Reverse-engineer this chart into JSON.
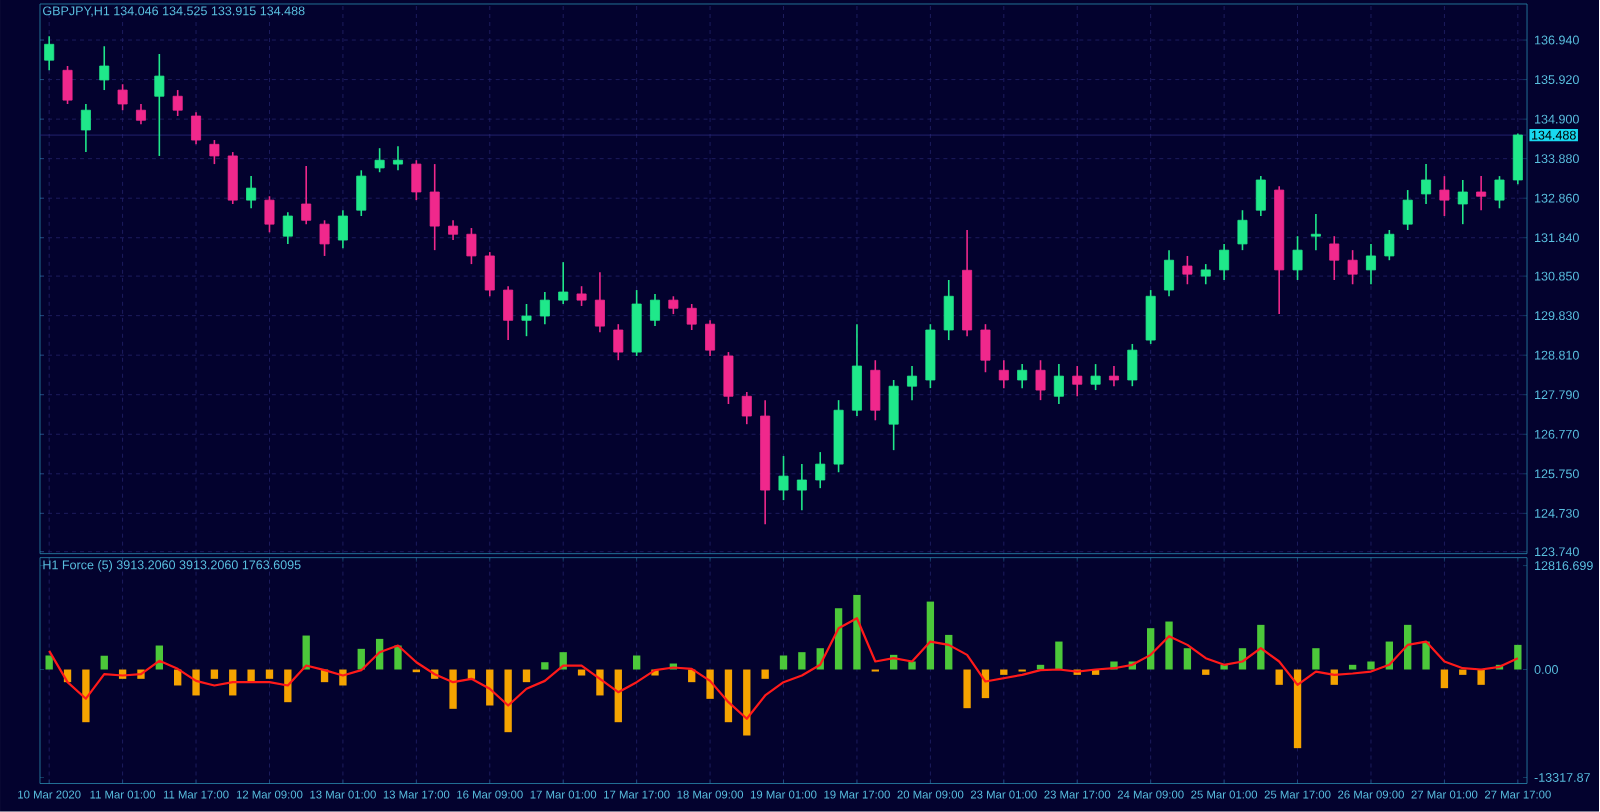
{
  "chart_data": [
    {
      "type": "candlestick",
      "title": "GBPJPY,H1  134.046 134.525 133.915 134.488",
      "categories": [
        null,
        null,
        null,
        null,
        null,
        null,
        null,
        null,
        null,
        null,
        null,
        null,
        null,
        null,
        null,
        null,
        null,
        null,
        null,
        null,
        null,
        null,
        null,
        null,
        null,
        null,
        null,
        null,
        null,
        null,
        null,
        null,
        null,
        null,
        null,
        null,
        null,
        null,
        null,
        null,
        null,
        null,
        null,
        null,
        null,
        null,
        null,
        null,
        null,
        null,
        null,
        null,
        null,
        null,
        null,
        null,
        null,
        null,
        null,
        null,
        null,
        null,
        null,
        null,
        null,
        null,
        null,
        null,
        null,
        null,
        null,
        null,
        null,
        null,
        null,
        null,
        null,
        null,
        null,
        null,
        null
      ],
      "ohlc": [
        [
          136.42,
          137.04,
          136.16,
          136.83
        ],
        [
          136.16,
          136.27,
          135.29,
          135.39
        ],
        [
          134.62,
          135.29,
          134.05,
          135.13
        ],
        [
          135.91,
          136.78,
          135.65,
          136.27
        ],
        [
          135.65,
          135.8,
          135.13,
          135.29
        ],
        [
          135.13,
          135.29,
          134.77,
          134.87
        ],
        [
          135.49,
          136.58,
          133.95,
          136.01
        ],
        [
          135.49,
          135.65,
          134.98,
          135.13
        ],
        [
          134.98,
          135.08,
          134.25,
          134.36
        ],
        [
          134.25,
          134.36,
          133.74,
          133.95
        ],
        [
          133.95,
          134.05,
          132.71,
          132.81
        ],
        [
          132.81,
          133.43,
          132.6,
          133.12
        ],
        [
          132.81,
          132.91,
          131.98,
          132.19
        ],
        [
          131.88,
          132.5,
          131.68,
          132.4
        ],
        [
          132.71,
          133.69,
          132.19,
          132.29
        ],
        [
          132.19,
          132.29,
          131.37,
          131.68
        ],
        [
          131.78,
          132.55,
          131.57,
          132.4
        ],
        [
          132.55,
          133.58,
          132.4,
          133.43
        ],
        [
          133.64,
          134.15,
          133.53,
          133.84
        ],
        [
          133.74,
          134.2,
          133.58,
          133.84
        ],
        [
          133.74,
          133.84,
          132.81,
          133.02
        ],
        [
          133.02,
          133.74,
          131.52,
          132.14
        ],
        [
          132.14,
          132.29,
          131.78,
          131.93
        ],
        [
          131.93,
          132.09,
          131.16,
          131.37
        ],
        [
          131.37,
          131.47,
          130.33,
          130.49
        ],
        [
          130.49,
          130.59,
          129.2,
          129.71
        ],
        [
          129.71,
          130.13,
          129.3,
          129.82
        ],
        [
          129.82,
          130.44,
          129.61,
          130.23
        ],
        [
          130.23,
          131.21,
          130.13,
          130.44
        ],
        [
          130.39,
          130.59,
          130.08,
          130.23
        ],
        [
          130.23,
          130.95,
          129.4,
          129.56
        ],
        [
          129.46,
          129.61,
          128.68,
          128.89
        ],
        [
          128.89,
          130.49,
          128.79,
          130.13
        ],
        [
          129.71,
          130.39,
          129.56,
          130.23
        ],
        [
          130.23,
          130.33,
          129.87,
          130.02
        ],
        [
          130.02,
          130.13,
          129.46,
          129.61
        ],
        [
          129.61,
          129.71,
          128.79,
          128.94
        ],
        [
          128.79,
          128.89,
          127.55,
          127.75
        ],
        [
          127.75,
          127.86,
          127.03,
          127.24
        ],
        [
          127.24,
          127.65,
          124.45,
          125.33
        ],
        [
          125.33,
          126.21,
          125.07,
          125.69
        ],
        [
          125.33,
          126.0,
          124.81,
          125.59
        ],
        [
          125.59,
          126.31,
          125.38,
          126.0
        ],
        [
          126.0,
          127.65,
          125.79,
          127.39
        ],
        [
          127.39,
          129.61,
          127.24,
          128.53
        ],
        [
          128.42,
          128.68,
          127.13,
          127.39
        ],
        [
          127.03,
          128.17,
          126.36,
          128.01
        ],
        [
          128.01,
          128.53,
          127.65,
          128.27
        ],
        [
          128.17,
          129.61,
          127.96,
          129.46
        ],
        [
          129.46,
          130.75,
          129.2,
          130.33
        ],
        [
          131.0,
          132.04,
          129.3,
          129.46
        ],
        [
          129.46,
          129.61,
          128.37,
          128.68
        ],
        [
          128.42,
          128.68,
          127.96,
          128.17
        ],
        [
          128.17,
          128.58,
          127.96,
          128.42
        ],
        [
          128.42,
          128.68,
          127.65,
          127.91
        ],
        [
          127.75,
          128.58,
          127.55,
          128.27
        ],
        [
          128.27,
          128.53,
          127.75,
          128.06
        ],
        [
          128.06,
          128.58,
          127.91,
          128.27
        ],
        [
          128.27,
          128.53,
          128.01,
          128.17
        ],
        [
          128.17,
          129.1,
          128.01,
          128.94
        ],
        [
          129.2,
          130.49,
          129.1,
          130.33
        ],
        [
          130.49,
          131.52,
          130.33,
          131.26
        ],
        [
          131.11,
          131.37,
          130.64,
          130.9
        ],
        [
          130.85,
          131.16,
          130.64,
          131.01
        ],
        [
          131.01,
          131.68,
          130.75,
          131.52
        ],
        [
          131.68,
          132.55,
          131.52,
          132.29
        ],
        [
          132.55,
          133.43,
          132.4,
          133.33
        ],
        [
          133.07,
          133.17,
          129.87,
          131.01
        ],
        [
          131.01,
          131.88,
          130.75,
          131.52
        ],
        [
          131.88,
          132.45,
          131.52,
          131.93
        ],
        [
          131.68,
          131.88,
          130.75,
          131.26
        ],
        [
          131.26,
          131.52,
          130.64,
          130.9
        ],
        [
          131.01,
          131.68,
          130.64,
          131.37
        ],
        [
          131.37,
          132.04,
          131.26,
          131.93
        ],
        [
          132.19,
          133.07,
          132.04,
          132.81
        ],
        [
          132.97,
          133.74,
          132.71,
          133.33
        ],
        [
          133.07,
          133.43,
          132.4,
          132.81
        ],
        [
          132.71,
          133.33,
          132.19,
          133.02
        ],
        [
          133.02,
          133.43,
          132.55,
          132.91
        ],
        [
          132.81,
          133.43,
          132.6,
          133.33
        ],
        [
          133.33,
          134.53,
          133.22,
          134.49
        ]
      ],
      "colors": [
        "#1fe88a",
        "#f0288c",
        "#1fe88a",
        "#1fe88a",
        "#f0288c",
        "#f0288c",
        "#1fe88a",
        "#f0288c",
        "#f0288c",
        "#f0288c",
        "#f0288c",
        "#1fe88a",
        "#f0288c",
        "#1fe88a",
        "#f0288c",
        "#f0288c",
        "#1fe88a",
        "#1fe88a",
        "#1fe88a",
        "#1fe88a",
        "#f0288c",
        "#f0288c",
        "#f0288c",
        "#f0288c",
        "#f0288c",
        "#f0288c",
        "#1fe88a",
        "#1fe88a",
        "#1fe88a",
        "#f0288c",
        "#f0288c",
        "#f0288c",
        "#1fe88a",
        "#1fe88a",
        "#f0288c",
        "#f0288c",
        "#f0288c",
        "#f0288c",
        "#f0288c",
        "#f0288c",
        "#1fe88a",
        "#1fe88a",
        "#1fe88a",
        "#1fe88a",
        "#1fe88a",
        "#f0288c",
        "#1fe88a",
        "#1fe88a",
        "#1fe88a",
        "#1fe88a",
        "#f0288c",
        "#f0288c",
        "#f0288c",
        "#1fe88a",
        "#f0288c",
        "#1fe88a",
        "#f0288c",
        "#1fe88a",
        "#f0288c",
        "#1fe88a",
        "#1fe88a",
        "#1fe88a",
        "#f0288c",
        "#1fe88a",
        "#1fe88a",
        "#1fe88a",
        "#1fe88a",
        "#f0288c",
        "#1fe88a",
        "#1fe88a",
        "#f0288c",
        "#f0288c",
        "#1fe88a",
        "#1fe88a",
        "#1fe88a",
        "#1fe88a",
        "#f0288c",
        "#1fe88a",
        "#f0288c",
        "#1fe88a",
        "#1fe88a"
      ],
      "ylim": [
        123.69,
        137.87
      ],
      "yticks": [
        {
          "value": 136.94,
          "label": "136.940"
        },
        {
          "value": 135.92,
          "label": "135.920"
        },
        {
          "value": 134.9,
          "label": "134.900"
        },
        {
          "value": 133.88,
          "label": "133.880"
        },
        {
          "value": 132.86,
          "label": "132.860"
        },
        {
          "value": 131.84,
          "label": "131.840"
        },
        {
          "value": 130.85,
          "label": "130.850"
        },
        {
          "value": 129.83,
          "label": "129.830"
        },
        {
          "value": 128.81,
          "label": "128.810"
        },
        {
          "value": 127.79,
          "label": "127.790"
        },
        {
          "value": 126.77,
          "label": "126.770"
        },
        {
          "value": 125.75,
          "label": "125.750"
        },
        {
          "value": 124.73,
          "label": "124.730"
        },
        {
          "value": 123.74,
          "label": "123.740"
        }
      ],
      "grid": true,
      "tick_labels": "y",
      "ref_lines": [
        {
          "axis": "y",
          "value": 134.488,
          "label": "134.488",
          "color": "#2a2a80"
        }
      ]
    },
    {
      "type": "bar",
      "title": "H1 Force (5) 3913.2060 3913.2060 1763.6095",
      "categories": [
        "10 Mar 2020",
        null,
        null,
        null,
        "11 Mar 01:00",
        null,
        null,
        null,
        "11 Mar 17:00",
        null,
        null,
        null,
        "12 Mar 09:00",
        null,
        null,
        null,
        "13 Mar 01:00",
        null,
        null,
        null,
        "13 Mar 17:00",
        null,
        null,
        null,
        "16 Mar 09:00",
        null,
        null,
        null,
        "17 Mar 01:00",
        null,
        null,
        null,
        "17 Mar 17:00",
        null,
        null,
        null,
        "18 Mar 09:00",
        null,
        null,
        null,
        "19 Mar 01:00",
        null,
        null,
        null,
        "19 Mar 17:00",
        null,
        null,
        null,
        "20 Mar 09:00",
        null,
        null,
        null,
        "23 Mar 01:00",
        null,
        null,
        null,
        "23 Mar 17:00",
        null,
        null,
        null,
        "24 Mar 09:00",
        null,
        null,
        null,
        "25 Mar 01:00",
        null,
        null,
        null,
        "25 Mar 17:00",
        null,
        null,
        null,
        "26 Mar 09:00",
        null,
        null,
        null,
        "27 Mar 01:00",
        null,
        null,
        null,
        "27 Mar 17:00"
      ],
      "series": [
        {
          "type": "bar",
          "values": [
            1730,
            -1560,
            -6500,
            1700,
            -1150,
            -1150,
            2960,
            -1970,
            -3200,
            -1150,
            -3200,
            -1560,
            -1150,
            -4030,
            4190,
            -1560,
            -1970,
            2550,
            3780,
            2960,
            -330,
            -1150,
            -4850,
            -1150,
            -4440,
            -7730,
            -1560,
            900,
            2140,
            -740,
            -3200,
            -6500,
            1730,
            -740,
            740,
            -1560,
            -3620,
            -6500,
            -8140,
            -1150,
            1730,
            2140,
            2630,
            7560,
            9200,
            -250,
            1810,
            990,
            8380,
            4270,
            -4770,
            -3530,
            -660,
            -250,
            580,
            3450,
            -660,
            -660,
            990,
            990,
            5100,
            5920,
            2630,
            -660,
            580,
            2630,
            5510,
            -1890,
            -9700,
            2630,
            -1890,
            580,
            990,
            3450,
            5510,
            3450,
            -2300,
            -660,
            -1890,
            580,
            3040
          ],
          "colors": [
            "#4cc83a",
            "#f5a300",
            "#f5a300",
            "#4cc83a",
            "#f5a300",
            "#f5a300",
            "#4cc83a",
            "#f5a300",
            "#f5a300",
            "#f5a300",
            "#f5a300",
            "#f5a300",
            "#f5a300",
            "#f5a300",
            "#4cc83a",
            "#f5a300",
            "#f5a300",
            "#4cc83a",
            "#4cc83a",
            "#4cc83a",
            "#f5a300",
            "#f5a300",
            "#f5a300",
            "#f5a300",
            "#f5a300",
            "#f5a300",
            "#f5a300",
            "#4cc83a",
            "#4cc83a",
            "#f5a300",
            "#f5a300",
            "#f5a300",
            "#4cc83a",
            "#f5a300",
            "#4cc83a",
            "#f5a300",
            "#f5a300",
            "#f5a300",
            "#f5a300",
            "#f5a300",
            "#4cc83a",
            "#4cc83a",
            "#4cc83a",
            "#4cc83a",
            "#4cc83a",
            "#f5a300",
            "#4cc83a",
            "#4cc83a",
            "#4cc83a",
            "#4cc83a",
            "#f5a300",
            "#f5a300",
            "#f5a300",
            "#f5a300",
            "#4cc83a",
            "#4cc83a",
            "#f5a300",
            "#f5a300",
            "#4cc83a",
            "#4cc83a",
            "#4cc83a",
            "#4cc83a",
            "#4cc83a",
            "#f5a300",
            "#4cc83a",
            "#4cc83a",
            "#4cc83a",
            "#f5a300",
            "#f5a300",
            "#4cc83a",
            "#f5a300",
            "#4cc83a",
            "#4cc83a",
            "#4cc83a",
            "#4cc83a",
            "#4cc83a",
            "#f5a300",
            "#f5a300",
            "#f5a300",
            "#4cc83a",
            "#4cc83a"
          ]
        },
        {
          "type": "line",
          "color": "#ff1a1a",
          "values": [
            2300,
            -1560,
            -3600,
            -580,
            -740,
            -580,
            1070,
            80,
            -1400,
            -1970,
            -1560,
            -1560,
            -1560,
            -1970,
            490,
            -80,
            -740,
            -80,
            2140,
            2960,
            900,
            -580,
            -1560,
            -1150,
            -2380,
            -4440,
            -2380,
            -1400,
            490,
            490,
            -1150,
            -2800,
            -1560,
            -80,
            250,
            80,
            -1400,
            -4030,
            -6080,
            -3200,
            -1560,
            -740,
            580,
            5100,
            6330,
            990,
            1400,
            990,
            3450,
            3040,
            1810,
            -1480,
            -1070,
            -660,
            -80,
            0,
            -250,
            0,
            160,
            580,
            1810,
            4110,
            3040,
            1400,
            580,
            990,
            2630,
            990,
            -1890,
            -250,
            -660,
            -490,
            -250,
            580,
            3040,
            3450,
            990,
            160,
            0,
            330,
            1400
          ]
        }
      ],
      "ylim": [
        -14060,
        13800
      ],
      "yticks": [
        12816.699,
        {
          "value": 0,
          "label": "0.00"
        },
        -13317.87
      ],
      "grid": "x"
    }
  ]
}
